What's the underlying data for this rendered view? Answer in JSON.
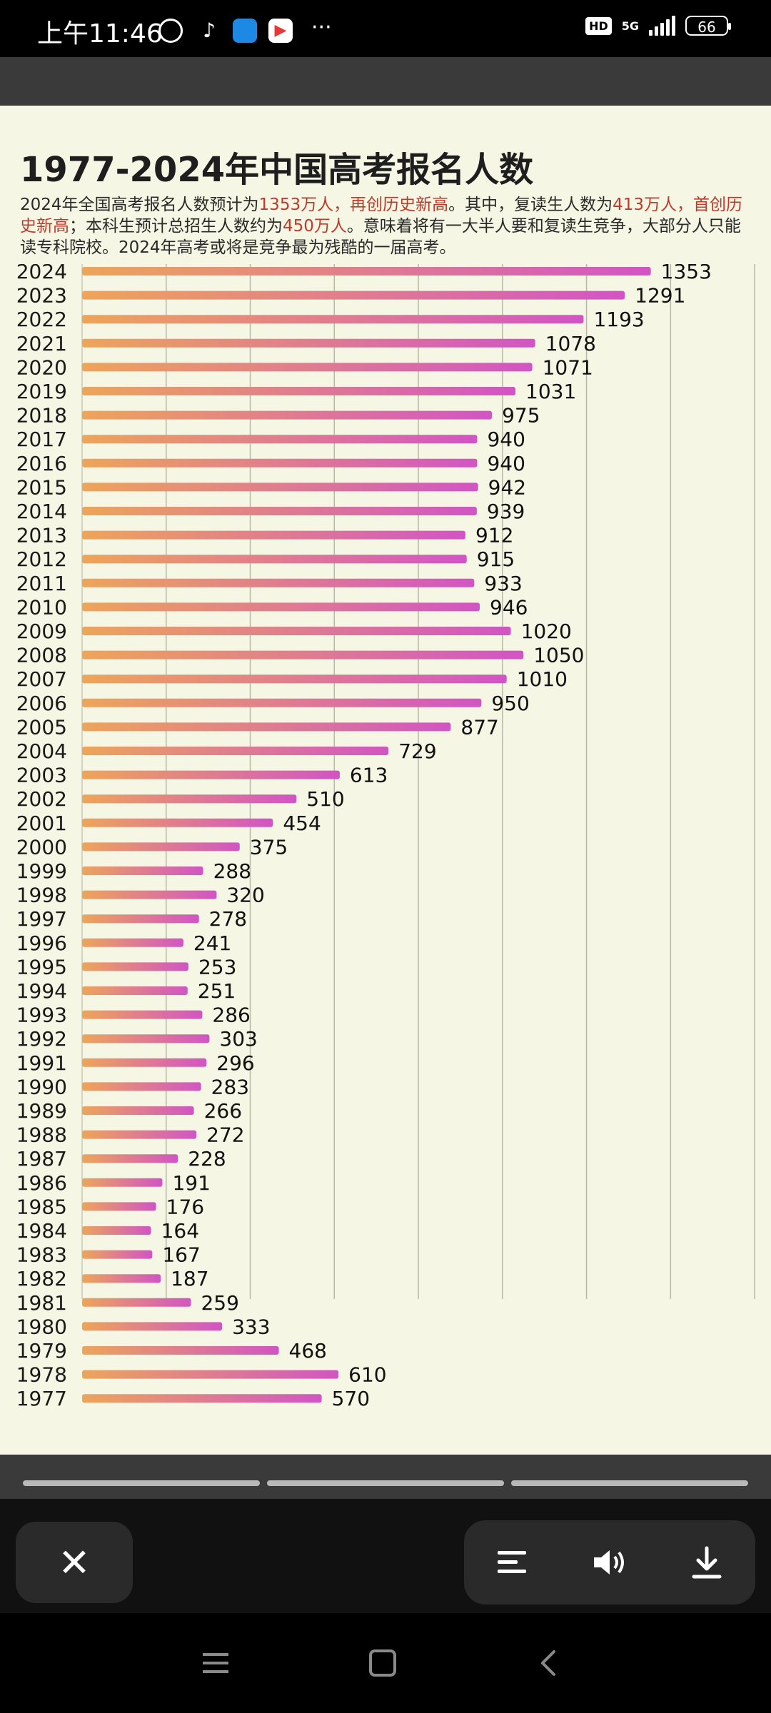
{
  "status_bar": {
    "time": "上午11:46",
    "hd": "HD",
    "network": "5G",
    "battery": "66"
  },
  "card": {
    "title": "1977-2024年中国高考报名人数",
    "subtitle_parts": [
      {
        "text": "2024年全国高考报名人数预计为",
        "hl": false
      },
      {
        "text": "1353万人，再创历史新高",
        "hl": true
      },
      {
        "text": "。其中，复读生人数为",
        "hl": false
      },
      {
        "text": "413万人，首创历史新高",
        "hl": true
      },
      {
        "text": "；本科生预计总招生人数约为",
        "hl": false
      },
      {
        "text": "450万人",
        "hl": true
      },
      {
        "text": "。意味着将有一大半人要和复读生竞争，大部分人只能读专科院校。2024年高考或将是竞争最为残酷的一届高考。",
        "hl": false
      }
    ]
  },
  "chart_data": {
    "type": "bar",
    "orientation": "horizontal",
    "categories": [
      "2024",
      "2023",
      "2022",
      "2021",
      "2020",
      "2019",
      "2018",
      "2017",
      "2016",
      "2015",
      "2014",
      "2013",
      "2012",
      "2011",
      "2010",
      "2009",
      "2008",
      "2007",
      "2006",
      "2005",
      "2004",
      "2003",
      "2002",
      "2001",
      "2000",
      "1999",
      "1998",
      "1997",
      "1996",
      "1995",
      "1994",
      "1993",
      "1992",
      "1991",
      "1990",
      "1989",
      "1988",
      "1987",
      "1986",
      "1985",
      "1984",
      "1983",
      "1982",
      "1981",
      "1980",
      "1979",
      "1978",
      "1977"
    ],
    "values": [
      1353,
      1291,
      1193,
      1078,
      1071,
      1031,
      975,
      940,
      940,
      942,
      939,
      912,
      915,
      933,
      946,
      1020,
      1050,
      1010,
      950,
      877,
      729,
      613,
      510,
      454,
      375,
      288,
      320,
      278,
      241,
      253,
      251,
      286,
      303,
      296,
      283,
      266,
      272,
      228,
      191,
      176,
      164,
      167,
      187,
      259,
      333,
      468,
      610,
      570
    ],
    "xlim": [
      0,
      1600
    ],
    "grid": true,
    "colors": {
      "start": "#eda55a",
      "end": "#d155c4"
    }
  },
  "controls": {
    "close_icon": "close-icon",
    "menu_icon": "menu-icon",
    "volume_icon": "volume-icon",
    "download_icon": "download-icon"
  }
}
